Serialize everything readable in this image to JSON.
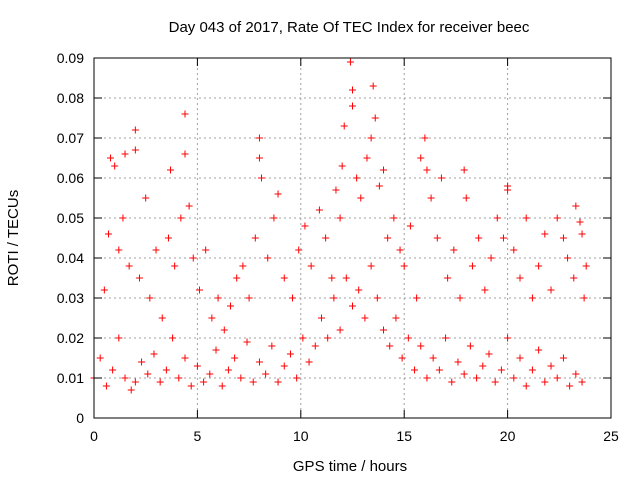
{
  "chart_data": {
    "type": "scatter",
    "title": "Day 043 of 2017, Rate Of TEC Index for receiver beec",
    "xlabel": "GPS time / hours",
    "ylabel": "ROTI / TECUs",
    "xlim": [
      0,
      25
    ],
    "ylim": [
      0,
      0.09
    ],
    "xticks": [
      "0",
      "5",
      "10",
      "15",
      "20",
      "25"
    ],
    "yticks": [
      "0",
      "0.01",
      "0.02",
      "0.03",
      "0.04",
      "0.05",
      "0.06",
      "0.07",
      "0.08",
      "0.09"
    ],
    "grid": true,
    "marker": "+",
    "color": "#ff0000",
    "series": [
      {
        "points": [
          [
            0.0,
            0.01
          ],
          [
            0.3,
            0.015
          ],
          [
            0.6,
            0.008
          ],
          [
            0.9,
            0.012
          ],
          [
            1.2,
            0.02
          ],
          [
            1.5,
            0.01
          ],
          [
            1.8,
            0.007
          ],
          [
            2.0,
            0.009
          ],
          [
            2.3,
            0.014
          ],
          [
            2.6,
            0.011
          ],
          [
            2.9,
            0.016
          ],
          [
            3.2,
            0.009
          ],
          [
            3.5,
            0.012
          ],
          [
            3.8,
            0.02
          ],
          [
            4.1,
            0.01
          ],
          [
            4.4,
            0.015
          ],
          [
            4.7,
            0.008
          ],
          [
            5.0,
            0.013
          ],
          [
            5.3,
            0.009
          ],
          [
            5.6,
            0.011
          ],
          [
            5.9,
            0.017
          ],
          [
            6.2,
            0.008
          ],
          [
            6.5,
            0.012
          ],
          [
            6.8,
            0.015
          ],
          [
            7.1,
            0.01
          ],
          [
            7.4,
            0.019
          ],
          [
            7.7,
            0.009
          ],
          [
            8.0,
            0.014
          ],
          [
            8.3,
            0.011
          ],
          [
            8.6,
            0.018
          ],
          [
            8.9,
            0.009
          ],
          [
            9.2,
            0.013
          ],
          [
            9.5,
            0.016
          ],
          [
            9.8,
            0.01
          ],
          [
            10.1,
            0.02
          ],
          [
            10.4,
            0.014
          ],
          [
            10.7,
            0.018
          ],
          [
            11.0,
            0.025
          ],
          [
            11.3,
            0.02
          ],
          [
            11.6,
            0.03
          ],
          [
            11.9,
            0.022
          ],
          [
            12.2,
            0.035
          ],
          [
            12.5,
            0.028
          ],
          [
            12.8,
            0.032
          ],
          [
            13.1,
            0.025
          ],
          [
            13.4,
            0.038
          ],
          [
            13.7,
            0.03
          ],
          [
            14.0,
            0.022
          ],
          [
            14.3,
            0.018
          ],
          [
            14.6,
            0.025
          ],
          [
            14.9,
            0.015
          ],
          [
            15.2,
            0.02
          ],
          [
            15.5,
            0.012
          ],
          [
            15.8,
            0.018
          ],
          [
            16.1,
            0.01
          ],
          [
            16.4,
            0.015
          ],
          [
            16.7,
            0.012
          ],
          [
            17.0,
            0.02
          ],
          [
            17.3,
            0.009
          ],
          [
            17.6,
            0.014
          ],
          [
            17.9,
            0.011
          ],
          [
            18.2,
            0.018
          ],
          [
            18.5,
            0.01
          ],
          [
            18.8,
            0.013
          ],
          [
            19.1,
            0.016
          ],
          [
            19.4,
            0.009
          ],
          [
            19.7,
            0.012
          ],
          [
            20.0,
            0.02
          ],
          [
            20.3,
            0.01
          ],
          [
            20.6,
            0.015
          ],
          [
            20.9,
            0.008
          ],
          [
            21.2,
            0.012
          ],
          [
            21.5,
            0.017
          ],
          [
            21.8,
            0.009
          ],
          [
            22.1,
            0.013
          ],
          [
            22.4,
            0.01
          ],
          [
            22.7,
            0.015
          ],
          [
            23.0,
            0.008
          ],
          [
            23.3,
            0.011
          ],
          [
            23.6,
            0.009
          ],
          [
            0.5,
            0.032
          ],
          [
            0.7,
            0.046
          ],
          [
            0.8,
            0.065
          ],
          [
            1.0,
            0.063
          ],
          [
            1.2,
            0.042
          ],
          [
            1.4,
            0.05
          ],
          [
            1.5,
            0.066
          ],
          [
            1.7,
            0.038
          ],
          [
            2.0,
            0.072
          ],
          [
            2.0,
            0.067
          ],
          [
            2.2,
            0.035
          ],
          [
            2.5,
            0.055
          ],
          [
            2.7,
            0.03
          ],
          [
            3.0,
            0.042
          ],
          [
            3.3,
            0.025
          ],
          [
            3.6,
            0.045
          ],
          [
            3.7,
            0.062
          ],
          [
            3.9,
            0.038
          ],
          [
            4.2,
            0.05
          ],
          [
            4.4,
            0.076
          ],
          [
            4.4,
            0.066
          ],
          [
            4.6,
            0.053
          ],
          [
            4.8,
            0.04
          ],
          [
            5.1,
            0.032
          ],
          [
            5.4,
            0.042
          ],
          [
            5.7,
            0.025
          ],
          [
            6.0,
            0.03
          ],
          [
            6.3,
            0.022
          ],
          [
            6.6,
            0.028
          ],
          [
            6.9,
            0.035
          ],
          [
            7.2,
            0.038
          ],
          [
            7.5,
            0.03
          ],
          [
            7.8,
            0.045
          ],
          [
            8.0,
            0.07
          ],
          [
            8.0,
            0.065
          ],
          [
            8.1,
            0.06
          ],
          [
            8.4,
            0.04
          ],
          [
            8.7,
            0.05
          ],
          [
            8.9,
            0.056
          ],
          [
            9.2,
            0.035
          ],
          [
            9.6,
            0.03
          ],
          [
            9.9,
            0.042
          ],
          [
            10.2,
            0.048
          ],
          [
            10.5,
            0.038
          ],
          [
            10.9,
            0.052
          ],
          [
            11.2,
            0.045
          ],
          [
            11.5,
            0.035
          ],
          [
            11.7,
            0.057
          ],
          [
            11.9,
            0.05
          ],
          [
            12.0,
            0.063
          ],
          [
            12.1,
            0.073
          ],
          [
            12.4,
            0.089
          ],
          [
            12.5,
            0.082
          ],
          [
            12.5,
            0.078
          ],
          [
            12.7,
            0.06
          ],
          [
            12.9,
            0.055
          ],
          [
            13.2,
            0.065
          ],
          [
            13.4,
            0.07
          ],
          [
            13.5,
            0.083
          ],
          [
            13.6,
            0.075
          ],
          [
            13.8,
            0.058
          ],
          [
            14.0,
            0.062
          ],
          [
            14.2,
            0.045
          ],
          [
            14.5,
            0.05
          ],
          [
            14.8,
            0.042
          ],
          [
            15.0,
            0.038
          ],
          [
            15.3,
            0.048
          ],
          [
            15.6,
            0.03
          ],
          [
            15.8,
            0.065
          ],
          [
            16.0,
            0.07
          ],
          [
            16.1,
            0.062
          ],
          [
            16.3,
            0.055
          ],
          [
            16.6,
            0.045
          ],
          [
            16.8,
            0.06
          ],
          [
            17.1,
            0.035
          ],
          [
            17.4,
            0.042
          ],
          [
            17.7,
            0.03
          ],
          [
            17.9,
            0.062
          ],
          [
            18.0,
            0.055
          ],
          [
            18.3,
            0.038
          ],
          [
            18.6,
            0.045
          ],
          [
            18.9,
            0.032
          ],
          [
            19.2,
            0.04
          ],
          [
            19.5,
            0.05
          ],
          [
            19.8,
            0.045
          ],
          [
            20.0,
            0.058
          ],
          [
            20.0,
            0.057
          ],
          [
            20.3,
            0.042
          ],
          [
            20.6,
            0.035
          ],
          [
            20.9,
            0.05
          ],
          [
            21.2,
            0.03
          ],
          [
            21.5,
            0.038
          ],
          [
            21.8,
            0.046
          ],
          [
            22.1,
            0.032
          ],
          [
            22.4,
            0.05
          ],
          [
            22.7,
            0.045
          ],
          [
            22.9,
            0.04
          ],
          [
            23.2,
            0.035
          ],
          [
            23.3,
            0.053
          ],
          [
            23.5,
            0.049
          ],
          [
            23.6,
            0.046
          ],
          [
            23.7,
            0.03
          ],
          [
            23.8,
            0.038
          ]
        ]
      }
    ]
  }
}
